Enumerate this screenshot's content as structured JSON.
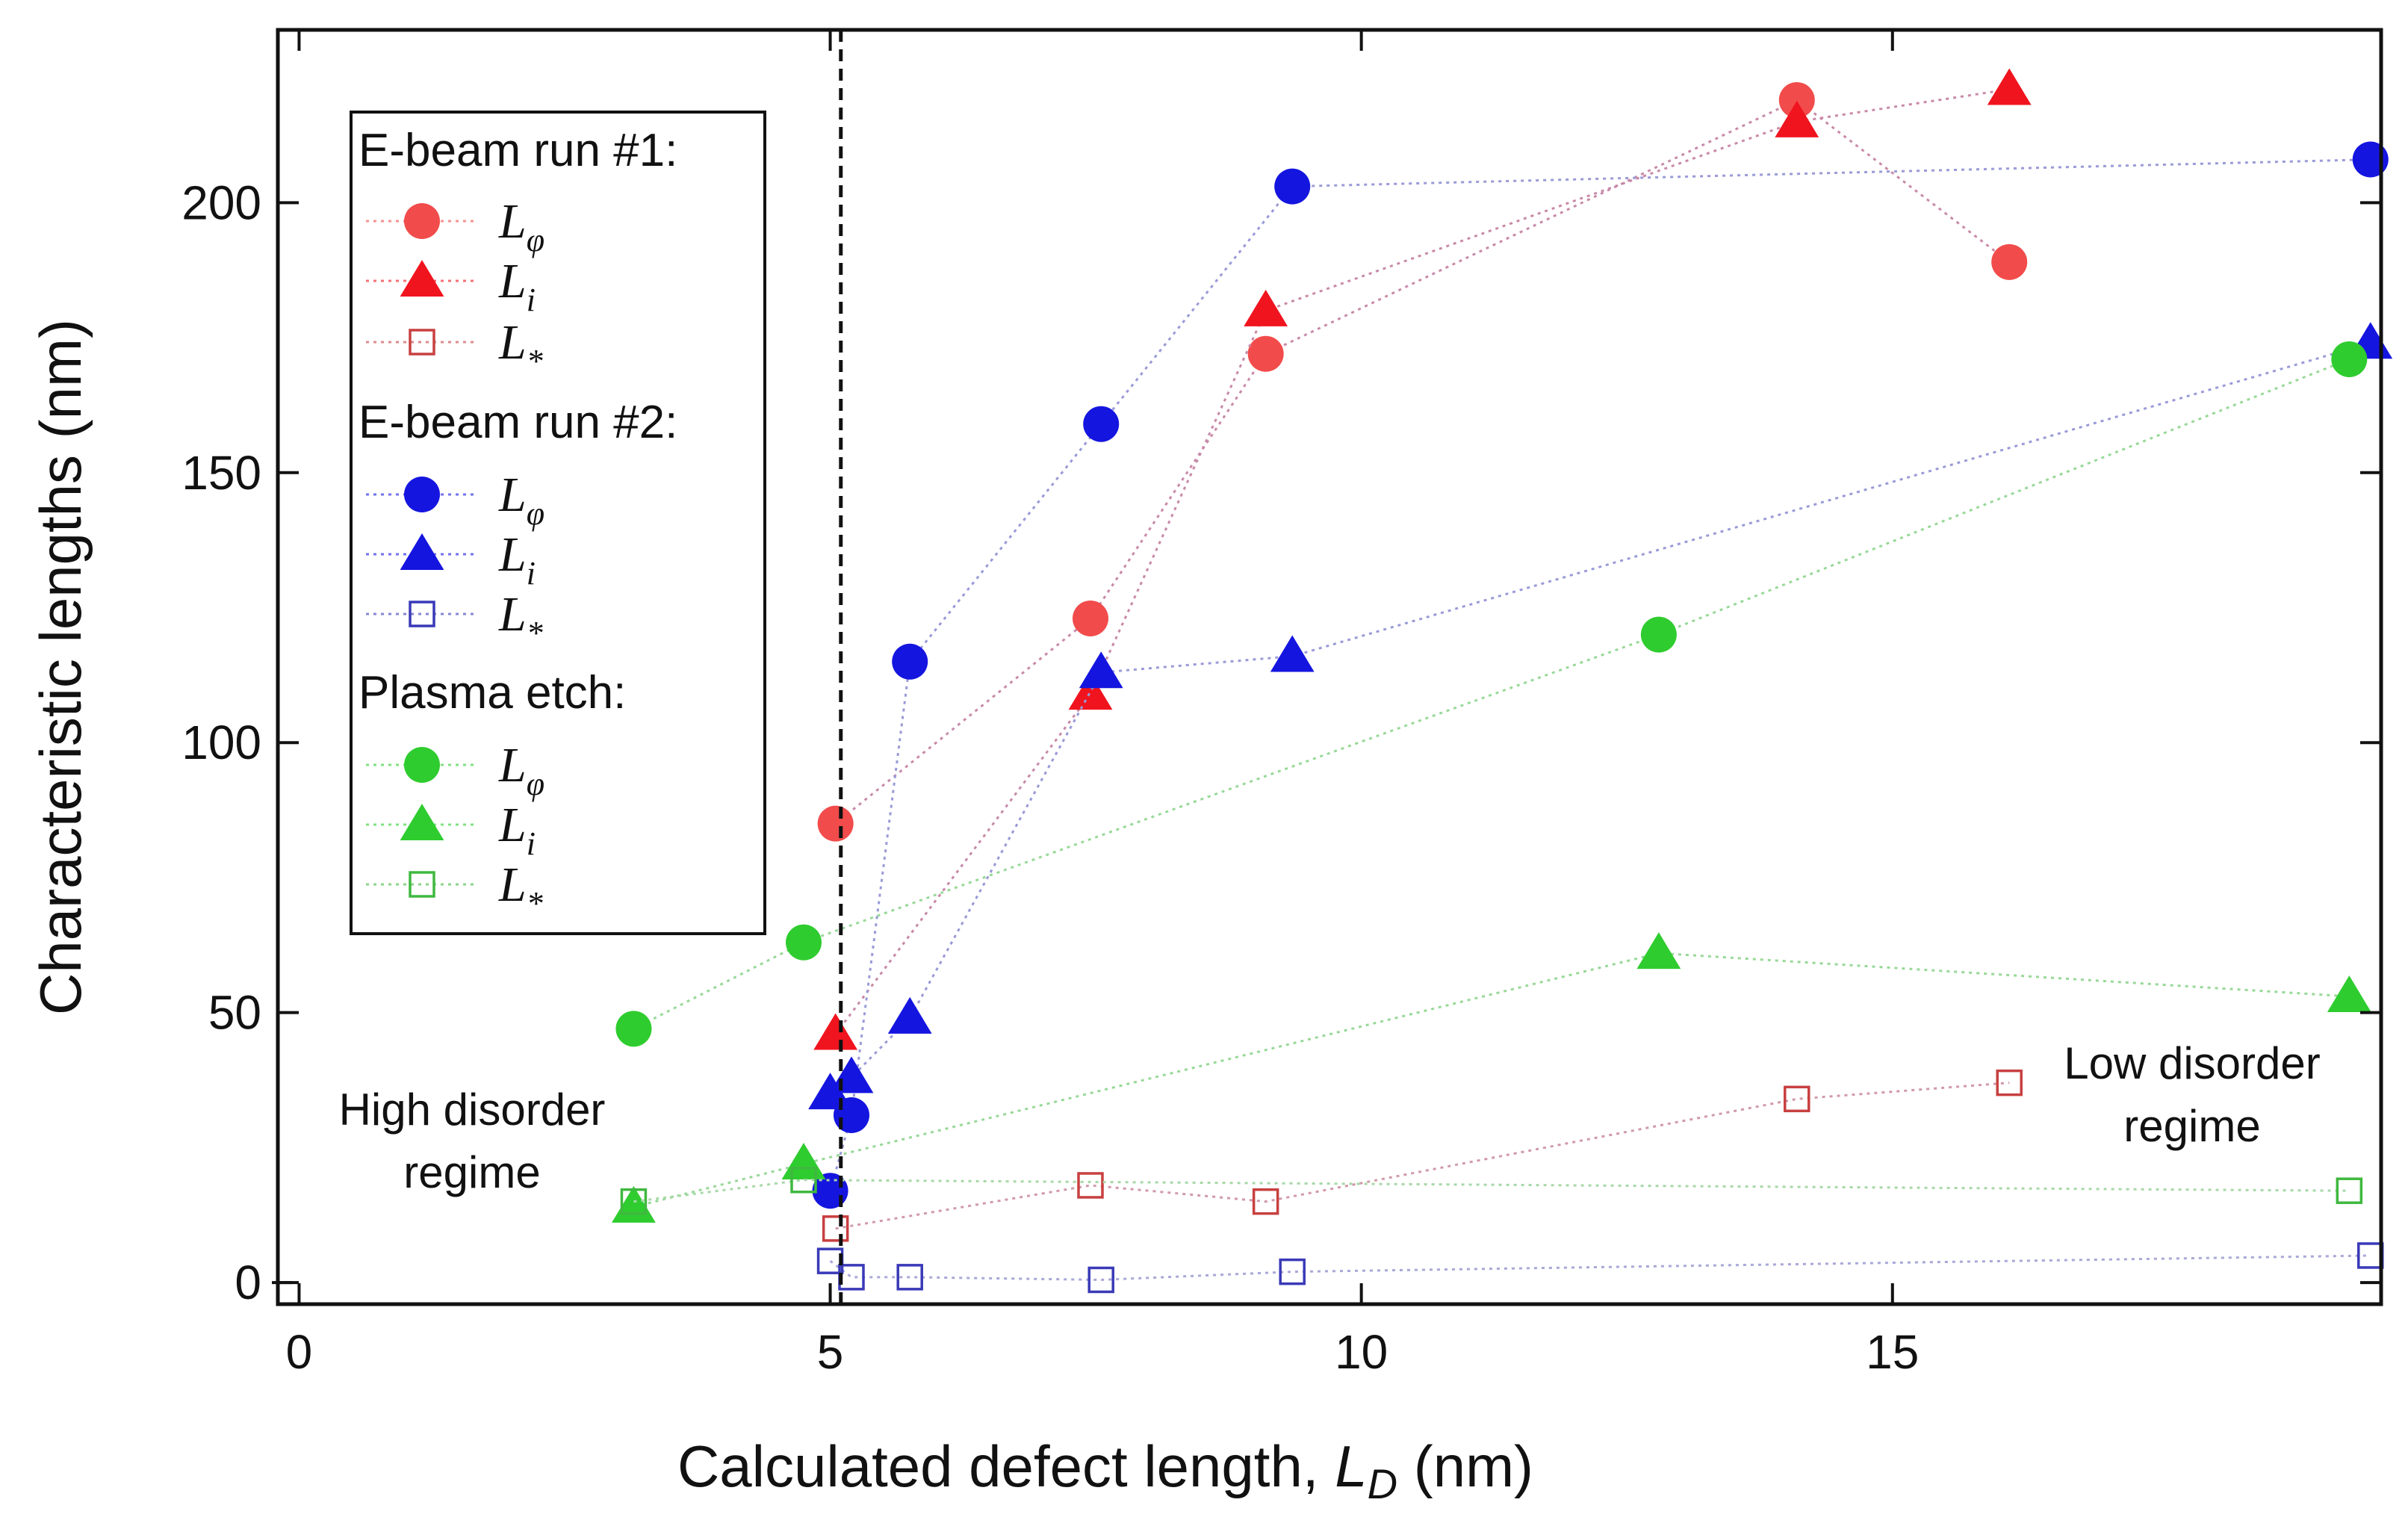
{
  "chart_data": {
    "type": "scatter",
    "xlabel": "Calculated defect length, ",
    "xlabel_symbol": "L",
    "xlabel_subscript": "D",
    "xlabel_units": " (nm)",
    "ylabel": "Characteristic lengths (nm)",
    "xlim": [
      -0.2,
      19.6
    ],
    "ylim": [
      -4,
      232
    ],
    "x_ticks": [
      0,
      5,
      10,
      15
    ],
    "y_ticks": [
      0,
      50,
      100,
      150,
      200
    ],
    "vline_x": 5.1,
    "colors": {
      "run1": "#f24b4b",
      "run2": "#1515e0",
      "plasma": "#2fcc2f",
      "run1_line": "#c88aa8",
      "run2_line": "#9a9ad8",
      "plasma_line": "#98d898"
    },
    "legend": [
      {
        "group": "E-beam run #1:",
        "items": [
          {
            "marker": "circle",
            "color": "#f24b4b",
            "symbol": "L",
            "sub": "φ"
          },
          {
            "marker": "triangle",
            "color": "#f0141e",
            "symbol": "L",
            "sub": "i"
          },
          {
            "marker": "square",
            "color": "#c84040",
            "symbol": "L",
            "sub": "*"
          }
        ]
      },
      {
        "group": "E-beam run #2:",
        "items": [
          {
            "marker": "circle",
            "color": "#1515e0",
            "symbol": "L",
            "sub": "φ"
          },
          {
            "marker": "triangle",
            "color": "#1515e0",
            "symbol": "L",
            "sub": "i"
          },
          {
            "marker": "square",
            "color": "#3a3ab8",
            "symbol": "L",
            "sub": "*"
          }
        ]
      },
      {
        "group": "Plasma etch:",
        "items": [
          {
            "marker": "circle",
            "color": "#2fcc2f",
            "symbol": "L",
            "sub": "φ"
          },
          {
            "marker": "triangle",
            "color": "#2fcc2f",
            "symbol": "L",
            "sub": "i"
          },
          {
            "marker": "square",
            "color": "#3fb83f",
            "symbol": "L",
            "sub": "*"
          }
        ]
      }
    ],
    "series": [
      {
        "name": "E-beam run #1 L_phi",
        "marker": "circle",
        "color": "#f24b4b",
        "line": "#c88aa8",
        "x": [
          5.05,
          7.45,
          9.1,
          14.1,
          16.1
        ],
        "y": [
          85,
          123,
          172,
          219,
          189
        ]
      },
      {
        "name": "E-beam run #1 L_i",
        "marker": "triangle",
        "color": "#f0141e",
        "line": "#c88aa8",
        "x": [
          5.05,
          7.45,
          9.1,
          14.1,
          16.1
        ],
        "y": [
          46,
          109,
          180,
          215,
          221
        ]
      },
      {
        "name": "E-beam run #1 L_*",
        "marker": "square",
        "color": "#c84040",
        "line": "#d09aa8",
        "x": [
          5.05,
          7.45,
          9.1,
          14.1,
          16.1
        ],
        "y": [
          10,
          18,
          15,
          34,
          37
        ]
      },
      {
        "name": "E-beam run #2 L_phi",
        "marker": "circle",
        "color": "#1515e0",
        "line": "#9a9ad8",
        "x": [
          5.0,
          5.2,
          5.75,
          7.55,
          9.35,
          19.5
        ],
        "y": [
          17,
          31,
          115,
          159,
          203,
          208
        ]
      },
      {
        "name": "E-beam run #2 L_i",
        "marker": "triangle",
        "color": "#1515e0",
        "line": "#9a9ad8",
        "x": [
          5.0,
          5.2,
          5.75,
          7.55,
          9.35,
          19.5
        ],
        "y": [
          35,
          38,
          49,
          113,
          116,
          174
        ]
      },
      {
        "name": "E-beam run #2 L_*",
        "marker": "square",
        "color": "#3a3ab8",
        "line": "#a8a8d8",
        "x": [
          5.0,
          5.2,
          5.75,
          7.55,
          9.35,
          19.5
        ],
        "y": [
          4,
          1,
          1,
          0.5,
          2,
          5
        ]
      },
      {
        "name": "Plasma etch L_phi",
        "marker": "circle",
        "color": "#2fcc2f",
        "line": "#98d898",
        "x": [
          3.15,
          4.75,
          12.8,
          19.3
        ],
        "y": [
          47,
          63,
          120,
          171
        ]
      },
      {
        "name": "Plasma etch L_i",
        "marker": "triangle",
        "color": "#2fcc2f",
        "line": "#98d898",
        "x": [
          3.15,
          4.75,
          12.8,
          19.3
        ],
        "y": [
          14,
          22,
          61,
          53
        ]
      },
      {
        "name": "Plasma etch L_*",
        "marker": "square",
        "color": "#3fb83f",
        "line": "#a8d8a8",
        "x": [
          3.15,
          4.75,
          19.3
        ],
        "y": [
          15,
          19,
          17
        ]
      }
    ],
    "annotations": [
      {
        "id": "high",
        "lines": [
          "High disorder",
          "regime"
        ]
      },
      {
        "id": "low",
        "lines": [
          "Low disorder",
          "regime"
        ]
      }
    ]
  }
}
